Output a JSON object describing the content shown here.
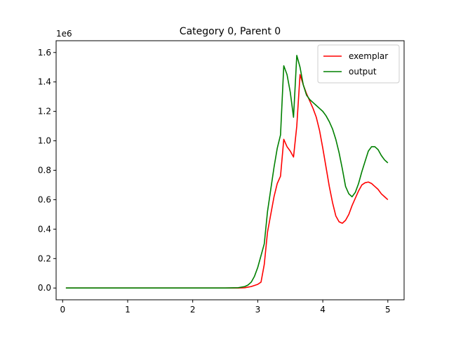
{
  "chart_data": {
    "type": "line",
    "title": "Category 0, Parent 0",
    "xlabel": "",
    "ylabel": "",
    "y_scale_label": "1e6",
    "xlim": [
      -0.1,
      5.25
    ],
    "ylim": [
      -0.08,
      1.68
    ],
    "x_ticks": [
      0,
      1,
      2,
      3,
      4,
      5
    ],
    "x_tick_labels": [
      "0",
      "1",
      "2",
      "3",
      "4",
      "5"
    ],
    "y_ticks": [
      0.0,
      0.2,
      0.4,
      0.6,
      0.8,
      1.0,
      1.2,
      1.4,
      1.6
    ],
    "y_tick_labels": [
      "0.0",
      "0.2",
      "0.4",
      "0.6",
      "0.8",
      "1.0",
      "1.2",
      "1.4",
      "1.6"
    ],
    "grid": false,
    "legend_position": "top-right",
    "series": [
      {
        "name": "exemplar",
        "color": "#ff0000",
        "x": [
          0.05,
          0.5,
          1.0,
          1.5,
          2.0,
          2.5,
          2.7,
          2.8,
          2.9,
          3.0,
          3.05,
          3.1,
          3.15,
          3.2,
          3.25,
          3.3,
          3.35,
          3.4,
          3.45,
          3.5,
          3.55,
          3.6,
          3.65,
          3.7,
          3.75,
          3.8,
          3.85,
          3.9,
          3.95,
          4.0,
          4.05,
          4.1,
          4.15,
          4.2,
          4.25,
          4.3,
          4.35,
          4.4,
          4.45,
          4.5,
          4.55,
          4.6,
          4.65,
          4.7,
          4.75,
          4.8,
          4.85,
          4.9,
          4.95,
          5.0
        ],
        "y": [
          0.0,
          0.0,
          0.0,
          0.0,
          0.0,
          0.0,
          0.0,
          0.002,
          0.01,
          0.025,
          0.04,
          0.16,
          0.38,
          0.5,
          0.62,
          0.71,
          0.76,
          1.01,
          0.96,
          0.93,
          0.89,
          1.1,
          1.45,
          1.38,
          1.32,
          1.27,
          1.22,
          1.16,
          1.07,
          0.95,
          0.82,
          0.69,
          0.58,
          0.49,
          0.45,
          0.44,
          0.46,
          0.5,
          0.56,
          0.61,
          0.66,
          0.7,
          0.715,
          0.72,
          0.71,
          0.69,
          0.67,
          0.64,
          0.62,
          0.6
        ]
      },
      {
        "name": "output",
        "color": "#008000",
        "x": [
          0.05,
          0.5,
          1.0,
          1.5,
          2.0,
          2.5,
          2.7,
          2.8,
          2.85,
          2.9,
          2.95,
          3.0,
          3.05,
          3.1,
          3.15,
          3.2,
          3.25,
          3.3,
          3.35,
          3.4,
          3.45,
          3.5,
          3.55,
          3.6,
          3.65,
          3.7,
          3.75,
          3.8,
          3.85,
          3.9,
          3.95,
          4.0,
          4.05,
          4.1,
          4.15,
          4.2,
          4.25,
          4.3,
          4.35,
          4.4,
          4.45,
          4.5,
          4.55,
          4.6,
          4.65,
          4.7,
          4.75,
          4.8,
          4.85,
          4.9,
          4.95,
          5.0
        ],
        "y": [
          0.0,
          0.0,
          0.0,
          0.0,
          0.0,
          0.0,
          0.002,
          0.01,
          0.02,
          0.04,
          0.08,
          0.14,
          0.22,
          0.3,
          0.52,
          0.67,
          0.82,
          0.95,
          1.04,
          1.51,
          1.45,
          1.33,
          1.16,
          1.58,
          1.5,
          1.38,
          1.31,
          1.28,
          1.26,
          1.24,
          1.22,
          1.2,
          1.17,
          1.13,
          1.08,
          1.01,
          0.92,
          0.81,
          0.69,
          0.64,
          0.62,
          0.65,
          0.71,
          0.79,
          0.86,
          0.93,
          0.96,
          0.96,
          0.94,
          0.9,
          0.87,
          0.85
        ]
      }
    ]
  }
}
